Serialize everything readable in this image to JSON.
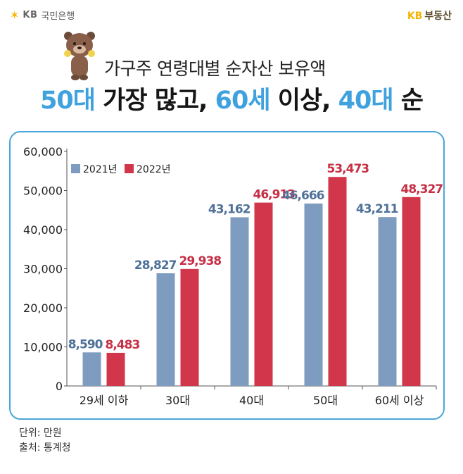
{
  "header": {
    "brand_left": "국민은행",
    "brand_left_mark": "KB",
    "brand_right_mark": "KB",
    "brand_right": "부동산",
    "subtitle": "가구주 연령대별 순자산 보유액",
    "headline": {
      "part1": "50대",
      "part2": " 가장 많고, ",
      "part3": "60세",
      "part4": " 이상, ",
      "part5": "40대",
      "part6": " 순"
    }
  },
  "colors": {
    "series_2021": "#7d9cbf",
    "series_2022": "#d2364a",
    "accent": "#3fa2df",
    "card_border": "#49a6d8"
  },
  "chart_data": {
    "type": "bar",
    "title": "",
    "xlabel": "",
    "ylabel": "",
    "categories": [
      "29세 이하",
      "30대",
      "40대",
      "50대",
      "60세 이상"
    ],
    "series": [
      {
        "name": "2021년",
        "values": [
          8590,
          28827,
          43162,
          46666,
          43211
        ],
        "labels": [
          "8,590",
          "28,827",
          "43,162",
          "46,666",
          "43,211"
        ]
      },
      {
        "name": "2022년",
        "values": [
          8483,
          29938,
          46913,
          53473,
          48327
        ],
        "labels": [
          "8,483",
          "29,938",
          "46,913",
          "53,473",
          "48,327"
        ]
      }
    ],
    "ylim": [
      0,
      60000
    ],
    "yticks": [
      0,
      10000,
      20000,
      30000,
      40000,
      50000,
      60000
    ],
    "ytick_labels": [
      "0",
      "10,000",
      "20,000",
      "30,000",
      "40,000",
      "50,000",
      "60,000"
    ],
    "grid": false,
    "legend_position": "top-left"
  },
  "footer": {
    "unit": "단위: 만원",
    "source": "출처: 통계청"
  }
}
